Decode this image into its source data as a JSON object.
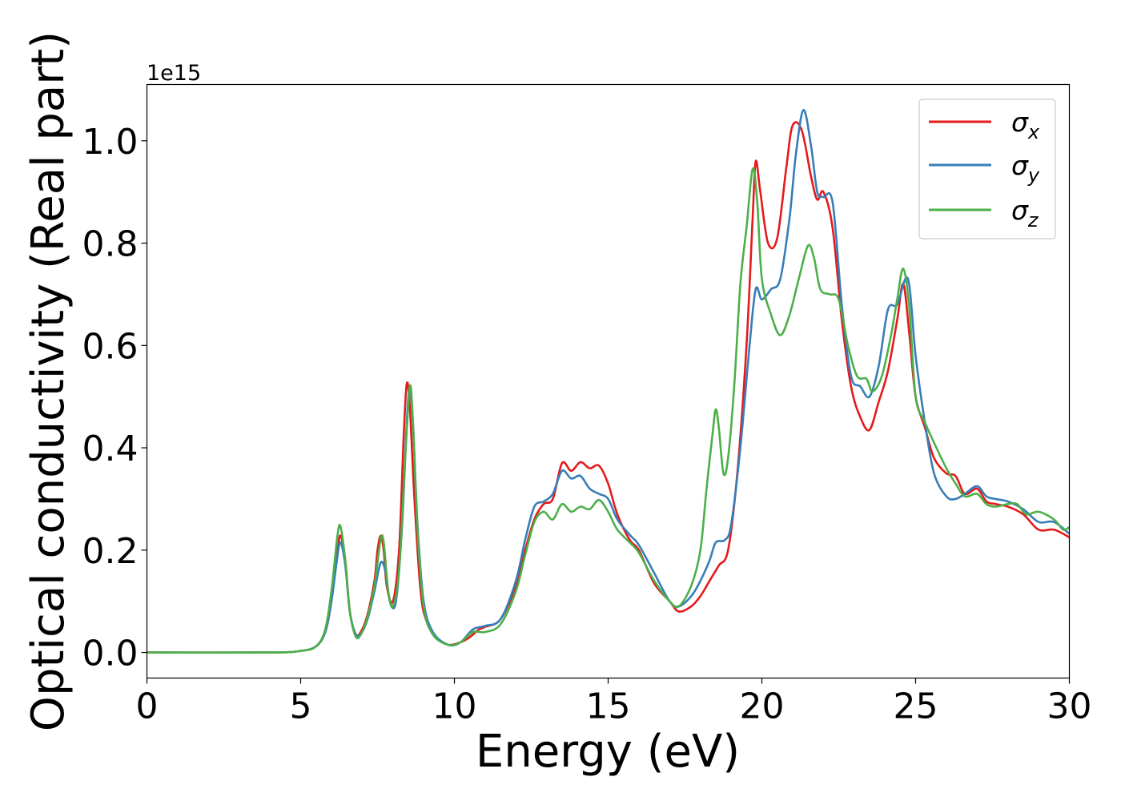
{
  "chart_data": {
    "type": "line",
    "xlabel": "Energy (eV)",
    "ylabel": "Optical conductivity (Real part)",
    "y_offset_label": "1e15",
    "xlim": [
      0,
      30
    ],
    "ylim": [
      -0.05,
      1.11
    ],
    "x_ticks": [
      0,
      5,
      10,
      15,
      20,
      25,
      30
    ],
    "x_tick_labels": [
      "0",
      "5",
      "10",
      "15",
      "20",
      "25",
      "30"
    ],
    "y_ticks": [
      0.0,
      0.2,
      0.4,
      0.6,
      0.8,
      1.0
    ],
    "y_tick_labels": [
      "0.0",
      "0.2",
      "0.4",
      "0.6",
      "0.8",
      "1.0"
    ],
    "grid": false,
    "legend_position": "top-right",
    "series": [
      {
        "name": "σ",
        "name_subscript": "x",
        "color": "#e41a1c",
        "points": [
          [
            0,
            0.0
          ],
          [
            4,
            0.0
          ],
          [
            5,
            0.003
          ],
          [
            5.5,
            0.012
          ],
          [
            5.8,
            0.04
          ],
          [
            6.0,
            0.1
          ],
          [
            6.2,
            0.2
          ],
          [
            6.3,
            0.228
          ],
          [
            6.45,
            0.18
          ],
          [
            6.6,
            0.08
          ],
          [
            6.8,
            0.035
          ],
          [
            7.0,
            0.045
          ],
          [
            7.2,
            0.08
          ],
          [
            7.4,
            0.14
          ],
          [
            7.5,
            0.2
          ],
          [
            7.6,
            0.228
          ],
          [
            7.7,
            0.2
          ],
          [
            7.8,
            0.13
          ],
          [
            8.0,
            0.1
          ],
          [
            8.2,
            0.2
          ],
          [
            8.35,
            0.42
          ],
          [
            8.45,
            0.525
          ],
          [
            8.55,
            0.48
          ],
          [
            8.7,
            0.3
          ],
          [
            8.9,
            0.12
          ],
          [
            9.1,
            0.06
          ],
          [
            9.4,
            0.03
          ],
          [
            9.8,
            0.015
          ],
          [
            10.2,
            0.02
          ],
          [
            10.5,
            0.03
          ],
          [
            10.8,
            0.045
          ],
          [
            11.0,
            0.05
          ],
          [
            11.5,
            0.065
          ],
          [
            12.0,
            0.13
          ],
          [
            12.3,
            0.2
          ],
          [
            12.6,
            0.26
          ],
          [
            12.9,
            0.29
          ],
          [
            13.2,
            0.3
          ],
          [
            13.5,
            0.37
          ],
          [
            13.8,
            0.355
          ],
          [
            14.1,
            0.372
          ],
          [
            14.4,
            0.36
          ],
          [
            14.7,
            0.365
          ],
          [
            15.0,
            0.33
          ],
          [
            15.3,
            0.27
          ],
          [
            15.7,
            0.22
          ],
          [
            16.0,
            0.2
          ],
          [
            16.5,
            0.135
          ],
          [
            17.0,
            0.1
          ],
          [
            17.3,
            0.08
          ],
          [
            17.7,
            0.09
          ],
          [
            18.0,
            0.11
          ],
          [
            18.3,
            0.14
          ],
          [
            18.6,
            0.17
          ],
          [
            18.9,
            0.2
          ],
          [
            19.2,
            0.35
          ],
          [
            19.5,
            0.6
          ],
          [
            19.7,
            0.85
          ],
          [
            19.8,
            0.96
          ],
          [
            19.95,
            0.9
          ],
          [
            20.2,
            0.8
          ],
          [
            20.5,
            0.81
          ],
          [
            20.8,
            0.95
          ],
          [
            21.0,
            1.03
          ],
          [
            21.3,
            1.02
          ],
          [
            21.6,
            0.93
          ],
          [
            21.8,
            0.885
          ],
          [
            22.0,
            0.9
          ],
          [
            22.3,
            0.83
          ],
          [
            22.6,
            0.65
          ],
          [
            22.9,
            0.52
          ],
          [
            23.2,
            0.46
          ],
          [
            23.5,
            0.435
          ],
          [
            23.8,
            0.49
          ],
          [
            24.1,
            0.55
          ],
          [
            24.4,
            0.65
          ],
          [
            24.6,
            0.72
          ],
          [
            24.8,
            0.62
          ],
          [
            25.0,
            0.5
          ],
          [
            25.3,
            0.44
          ],
          [
            25.6,
            0.38
          ],
          [
            26.0,
            0.35
          ],
          [
            26.3,
            0.345
          ],
          [
            26.6,
            0.31
          ],
          [
            27.0,
            0.32
          ],
          [
            27.3,
            0.295
          ],
          [
            27.6,
            0.29
          ],
          [
            28.0,
            0.285
          ],
          [
            28.5,
            0.27
          ],
          [
            29.0,
            0.24
          ],
          [
            29.5,
            0.24
          ],
          [
            30.0,
            0.225
          ]
        ]
      },
      {
        "name": "σ",
        "name_subscript": "y",
        "color": "#377eb8",
        "points": [
          [
            0,
            0.0
          ],
          [
            4,
            0.0
          ],
          [
            5,
            0.003
          ],
          [
            5.5,
            0.012
          ],
          [
            5.8,
            0.04
          ],
          [
            6.0,
            0.1
          ],
          [
            6.2,
            0.19
          ],
          [
            6.3,
            0.215
          ],
          [
            6.45,
            0.17
          ],
          [
            6.6,
            0.08
          ],
          [
            6.8,
            0.035
          ],
          [
            7.0,
            0.04
          ],
          [
            7.2,
            0.07
          ],
          [
            7.4,
            0.12
          ],
          [
            7.6,
            0.175
          ],
          [
            7.75,
            0.16
          ],
          [
            7.9,
            0.1
          ],
          [
            8.1,
            0.1
          ],
          [
            8.3,
            0.25
          ],
          [
            8.45,
            0.45
          ],
          [
            8.55,
            0.515
          ],
          [
            8.65,
            0.45
          ],
          [
            8.8,
            0.25
          ],
          [
            9.0,
            0.1
          ],
          [
            9.3,
            0.04
          ],
          [
            9.8,
            0.015
          ],
          [
            10.2,
            0.02
          ],
          [
            10.6,
            0.045
          ],
          [
            11.0,
            0.052
          ],
          [
            11.5,
            0.065
          ],
          [
            12.0,
            0.14
          ],
          [
            12.3,
            0.22
          ],
          [
            12.6,
            0.285
          ],
          [
            12.9,
            0.295
          ],
          [
            13.2,
            0.31
          ],
          [
            13.5,
            0.355
          ],
          [
            13.8,
            0.34
          ],
          [
            14.1,
            0.345
          ],
          [
            14.4,
            0.32
          ],
          [
            14.7,
            0.31
          ],
          [
            15.0,
            0.3
          ],
          [
            15.3,
            0.26
          ],
          [
            15.7,
            0.23
          ],
          [
            16.0,
            0.21
          ],
          [
            16.5,
            0.155
          ],
          [
            17.0,
            0.1
          ],
          [
            17.3,
            0.09
          ],
          [
            17.7,
            0.11
          ],
          [
            18.0,
            0.14
          ],
          [
            18.3,
            0.18
          ],
          [
            18.5,
            0.215
          ],
          [
            18.8,
            0.22
          ],
          [
            19.0,
            0.25
          ],
          [
            19.3,
            0.4
          ],
          [
            19.6,
            0.6
          ],
          [
            19.8,
            0.71
          ],
          [
            20.0,
            0.69
          ],
          [
            20.3,
            0.71
          ],
          [
            20.6,
            0.73
          ],
          [
            20.9,
            0.85
          ],
          [
            21.1,
            0.97
          ],
          [
            21.35,
            1.06
          ],
          [
            21.6,
            0.99
          ],
          [
            21.8,
            0.9
          ],
          [
            22.0,
            0.89
          ],
          [
            22.3,
            0.88
          ],
          [
            22.6,
            0.68
          ],
          [
            22.9,
            0.54
          ],
          [
            23.2,
            0.52
          ],
          [
            23.5,
            0.5
          ],
          [
            23.8,
            0.56
          ],
          [
            24.1,
            0.67
          ],
          [
            24.4,
            0.68
          ],
          [
            24.75,
            0.73
          ],
          [
            25.0,
            0.58
          ],
          [
            25.3,
            0.45
          ],
          [
            25.6,
            0.35
          ],
          [
            26.0,
            0.305
          ],
          [
            26.3,
            0.3
          ],
          [
            26.6,
            0.31
          ],
          [
            27.0,
            0.325
          ],
          [
            27.3,
            0.305
          ],
          [
            27.6,
            0.3
          ],
          [
            28.0,
            0.295
          ],
          [
            28.5,
            0.28
          ],
          [
            29.0,
            0.255
          ],
          [
            29.5,
            0.255
          ],
          [
            30.0,
            0.232
          ]
        ]
      },
      {
        "name": "σ",
        "name_subscript": "z",
        "color": "#4daf4a",
        "points": [
          [
            0,
            0.0
          ],
          [
            4,
            0.0
          ],
          [
            5,
            0.003
          ],
          [
            5.5,
            0.012
          ],
          [
            5.8,
            0.045
          ],
          [
            6.0,
            0.12
          ],
          [
            6.2,
            0.23
          ],
          [
            6.3,
            0.245
          ],
          [
            6.45,
            0.18
          ],
          [
            6.6,
            0.08
          ],
          [
            6.8,
            0.03
          ],
          [
            7.0,
            0.04
          ],
          [
            7.2,
            0.075
          ],
          [
            7.4,
            0.13
          ],
          [
            7.6,
            0.22
          ],
          [
            7.7,
            0.215
          ],
          [
            7.85,
            0.12
          ],
          [
            8.0,
            0.09
          ],
          [
            8.2,
            0.16
          ],
          [
            8.4,
            0.38
          ],
          [
            8.55,
            0.52
          ],
          [
            8.65,
            0.45
          ],
          [
            8.8,
            0.24
          ],
          [
            9.0,
            0.09
          ],
          [
            9.3,
            0.035
          ],
          [
            9.8,
            0.015
          ],
          [
            10.2,
            0.02
          ],
          [
            10.6,
            0.04
          ],
          [
            11.0,
            0.04
          ],
          [
            11.5,
            0.055
          ],
          [
            12.0,
            0.12
          ],
          [
            12.3,
            0.19
          ],
          [
            12.6,
            0.255
          ],
          [
            12.9,
            0.275
          ],
          [
            13.2,
            0.26
          ],
          [
            13.5,
            0.29
          ],
          [
            13.8,
            0.275
          ],
          [
            14.1,
            0.285
          ],
          [
            14.4,
            0.28
          ],
          [
            14.7,
            0.298
          ],
          [
            15.0,
            0.275
          ],
          [
            15.3,
            0.24
          ],
          [
            15.7,
            0.215
          ],
          [
            16.0,
            0.195
          ],
          [
            16.5,
            0.14
          ],
          [
            17.0,
            0.1
          ],
          [
            17.3,
            0.09
          ],
          [
            17.7,
            0.13
          ],
          [
            18.0,
            0.2
          ],
          [
            18.2,
            0.32
          ],
          [
            18.4,
            0.43
          ],
          [
            18.5,
            0.475
          ],
          [
            18.6,
            0.44
          ],
          [
            18.75,
            0.35
          ],
          [
            18.9,
            0.38
          ],
          [
            19.1,
            0.52
          ],
          [
            19.3,
            0.72
          ],
          [
            19.5,
            0.83
          ],
          [
            19.7,
            0.945
          ],
          [
            19.85,
            0.88
          ],
          [
            20.0,
            0.73
          ],
          [
            20.3,
            0.66
          ],
          [
            20.6,
            0.62
          ],
          [
            20.9,
            0.66
          ],
          [
            21.2,
            0.73
          ],
          [
            21.5,
            0.795
          ],
          [
            21.7,
            0.77
          ],
          [
            21.9,
            0.71
          ],
          [
            22.2,
            0.7
          ],
          [
            22.5,
            0.69
          ],
          [
            22.8,
            0.6
          ],
          [
            23.1,
            0.54
          ],
          [
            23.4,
            0.535
          ],
          [
            23.6,
            0.51
          ],
          [
            23.9,
            0.54
          ],
          [
            24.2,
            0.62
          ],
          [
            24.4,
            0.69
          ],
          [
            24.6,
            0.75
          ],
          [
            24.8,
            0.67
          ],
          [
            25.0,
            0.5
          ],
          [
            25.3,
            0.45
          ],
          [
            25.6,
            0.41
          ],
          [
            26.0,
            0.36
          ],
          [
            26.3,
            0.33
          ],
          [
            26.6,
            0.305
          ],
          [
            27.0,
            0.31
          ],
          [
            27.3,
            0.29
          ],
          [
            27.6,
            0.285
          ],
          [
            28.0,
            0.29
          ],
          [
            28.3,
            0.29
          ],
          [
            28.6,
            0.27
          ],
          [
            29.0,
            0.275
          ],
          [
            29.5,
            0.26
          ],
          [
            29.8,
            0.24
          ],
          [
            30.0,
            0.245
          ]
        ]
      }
    ]
  }
}
